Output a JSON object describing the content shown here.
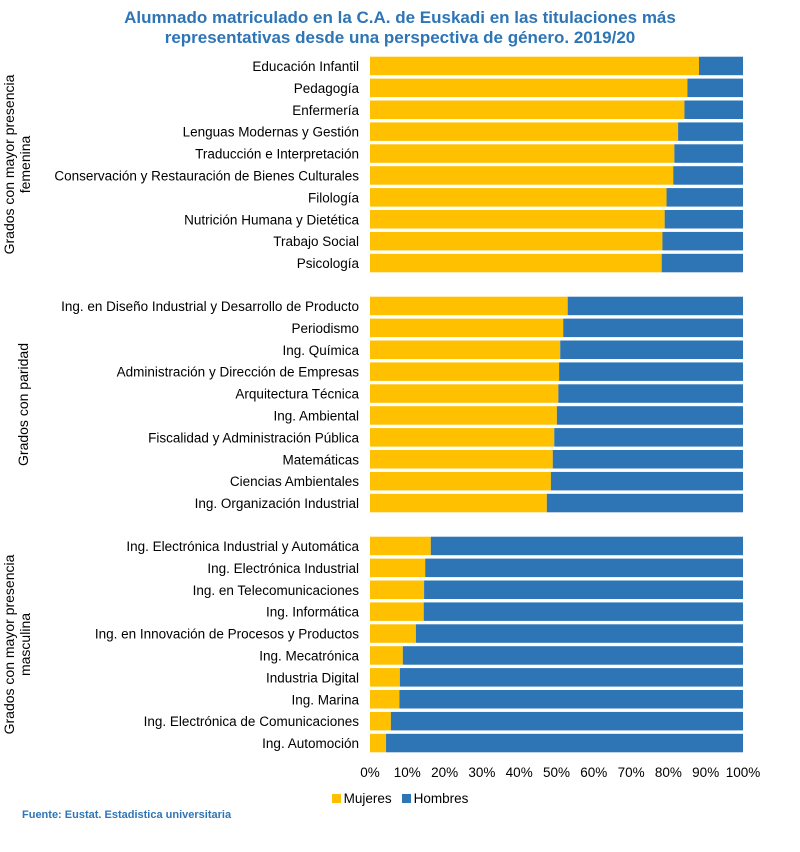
{
  "chart_data": {
    "type": "bar",
    "orientation": "horizontal",
    "stacked": true,
    "title_lines": [
      "Alumnado matriculado en la C.A. de Euskadi en las titulaciones más",
      "representativas desde una perspectiva de género. 2019/20"
    ],
    "xlim": [
      0,
      100
    ],
    "x_ticks": [
      "0%",
      "10%",
      "20%",
      "30%",
      "40%",
      "50%",
      "60%",
      "70%",
      "80%",
      "90%",
      "100%"
    ],
    "colors": {
      "Mujeres": "#ffc000",
      "Hombres": "#2e75b6"
    },
    "legend": [
      {
        "name": "Mujeres",
        "color": "#ffc000"
      },
      {
        "name": "Hombres",
        "color": "#2e75b6"
      }
    ],
    "groups": [
      {
        "label_lines": [
          "Grados con mayor presencia",
          "femenina"
        ],
        "categories": [
          "Educación Infantil",
          "Pedagogía",
          "Enfermería",
          "Lenguas Modernas y Gestión",
          "Traducción e Interpretación",
          "Conservación y Restauración de Bienes Culturales",
          "Filología",
          "Nutrición Humana y Dietética",
          "Trabajo Social",
          "Psicología"
        ],
        "mujeres": [
          88.2,
          85.1,
          84.3,
          82.6,
          81.6,
          81.3,
          79.5,
          79.0,
          78.4,
          78.2
        ]
      },
      {
        "label_lines": [
          "Grados con paridad"
        ],
        "categories": [
          "Ing. en Diseño Industrial y Desarrollo de Producto",
          "Periodismo",
          "Ing. Química",
          "Administración y Dirección de Empresas",
          "Arquitectura Técnica",
          "Ing. Ambiental",
          "Fiscalidad y Administración Pública",
          "Matemáticas",
          "Ciencias Ambientales",
          "Ing. Organización Industrial"
        ],
        "mujeres": [
          53.0,
          51.8,
          51.0,
          50.7,
          50.5,
          50.1,
          49.4,
          49.0,
          48.5,
          47.4
        ]
      },
      {
        "label_lines": [
          "Grados con mayor presencia",
          "masculina"
        ],
        "categories": [
          "Ing. Electrónica Industrial y Automática",
          "Ing. Electrónica Industrial",
          "Ing. en Telecomunicaciones",
          "Ing. Informática",
          "Ing. en Innovación de Procesos y Productos",
          "Ing. Mecatrónica",
          "Industria Digital",
          "Ing. Marina",
          "Ing. Electrónica de Comunicaciones",
          "Ing. Automoción"
        ],
        "mujeres": [
          16.3,
          14.8,
          14.5,
          14.4,
          12.3,
          8.8,
          8.0,
          7.9,
          5.6,
          4.3
        ]
      }
    ],
    "source": "Fuente: Eustat. Estadistica universitaria"
  }
}
